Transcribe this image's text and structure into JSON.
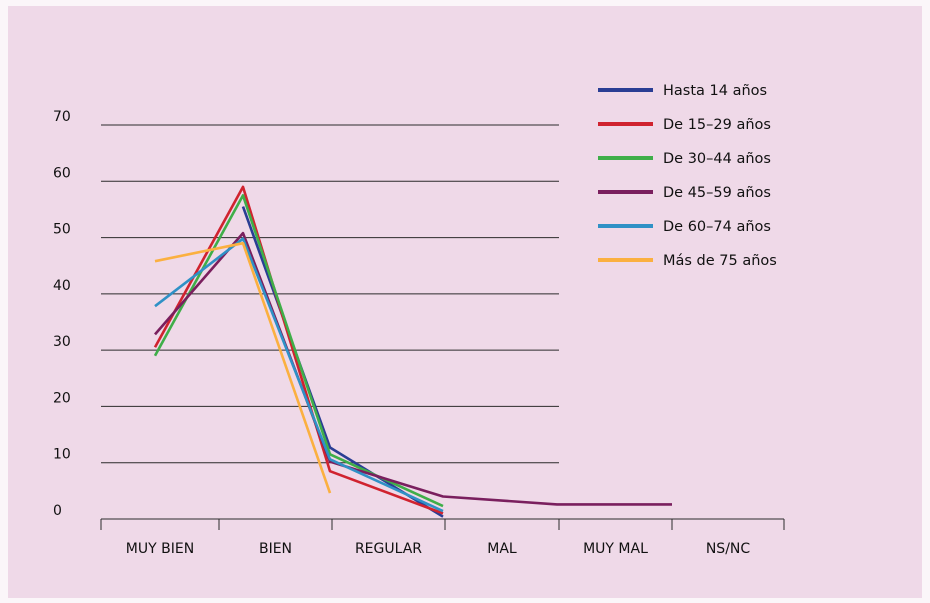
{
  "chart_data": {
    "type": "line",
    "categories": [
      "MUY BIEN",
      "BIEN",
      "REGULAR",
      "MAL",
      "MUY MAL",
      "NS/NC"
    ],
    "ylim": [
      0,
      70
    ],
    "yticks": [
      0,
      10,
      20,
      30,
      40,
      50,
      60,
      70
    ],
    "grid": true,
    "legend_position": "top-right",
    "series": [
      {
        "name": "Hasta 14 años",
        "color": "#2a3e94",
        "values": [
          null,
          55.5,
          12.7,
          0.4,
          null,
          null
        ]
      },
      {
        "name": "De 15–29 años",
        "color": "#d0232f",
        "values": [
          30.5,
          59,
          8.5,
          1,
          null,
          null
        ]
      },
      {
        "name": "De 30–44 años",
        "color": "#3fae49",
        "values": [
          29,
          57.5,
          11.5,
          2.3,
          null,
          null
        ]
      },
      {
        "name": "De 45–59 años",
        "color": "#7a1f5e",
        "values": [
          32.8,
          50.8,
          10.2,
          4,
          2.6,
          2.6
        ]
      },
      {
        "name": "De 60–74 años",
        "color": "#2f91c6",
        "values": [
          37.8,
          49.8,
          10.6,
          1.4,
          null,
          null
        ]
      },
      {
        "name": "Más de 75 años",
        "color": "#fbb040",
        "values": [
          45.8,
          49,
          4.6,
          null,
          null,
          null
        ]
      }
    ]
  }
}
